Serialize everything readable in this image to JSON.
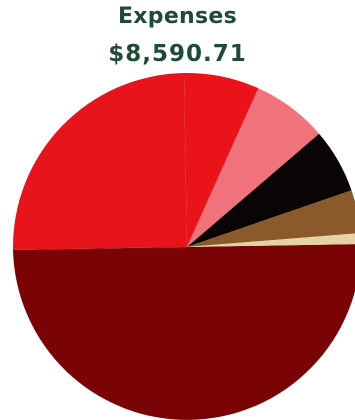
{
  "header": {
    "title": "Expenses",
    "total": "$8,590.71"
  },
  "chart_data": {
    "type": "pie",
    "title": "Expenses",
    "subtitle": "$8,590.71",
    "start_angle_deg": -1,
    "direction": "clockwise",
    "slices": [
      {
        "value": 50.0,
        "color": "#7a0306"
      },
      {
        "value": 25.0,
        "color": "#e8141b"
      },
      {
        "value": 7.0,
        "color": "#ea1319"
      },
      {
        "value": 7.0,
        "color": "#f0727b"
      },
      {
        "value": 6.0,
        "color": "#0a0505"
      },
      {
        "value": 4.0,
        "color": "#8a5a2b"
      },
      {
        "value": 1.0,
        "color": "#e7d2a6"
      }
    ]
  }
}
